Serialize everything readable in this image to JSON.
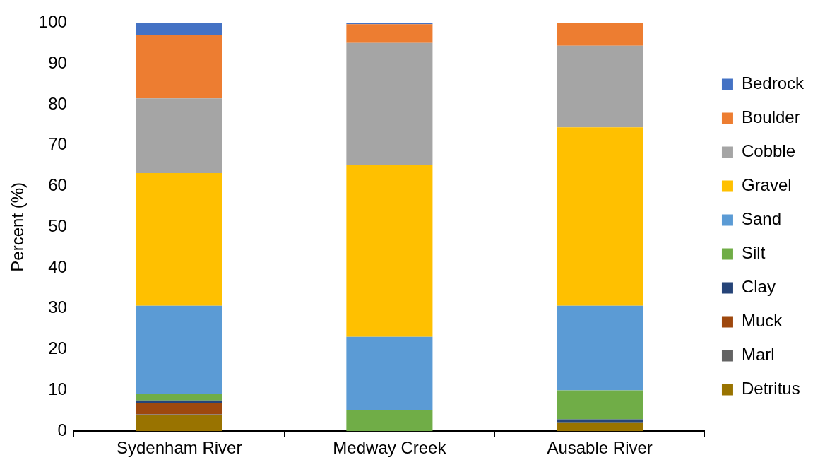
{
  "chart_data": {
    "type": "bar",
    "ylabel": "Percent (%)",
    "categories": [
      "Sydenham River",
      "Medway Creek",
      "Ausable River"
    ],
    "stacked": true,
    "ylim": [
      0,
      100
    ],
    "yticks": [
      0,
      10,
      20,
      30,
      40,
      50,
      60,
      70,
      80,
      90,
      100
    ],
    "grid": false,
    "legend": "right",
    "series": [
      {
        "name": "Detritus",
        "color": "#997300",
        "values": [
          3.9,
          0,
          2.0
        ]
      },
      {
        "name": "Marl",
        "color": "#636363",
        "values": [
          0.2,
          0,
          0
        ]
      },
      {
        "name": "Muck",
        "color": "#9e480e",
        "values": [
          2.8,
          0,
          0
        ]
      },
      {
        "name": "Clay",
        "color": "#264478",
        "values": [
          0.6,
          0,
          0.9
        ]
      },
      {
        "name": "Silt",
        "color": "#70ad47",
        "values": [
          1.6,
          5.2,
          7.1
        ]
      },
      {
        "name": "Sand",
        "color": "#5b9bd5",
        "values": [
          21.6,
          17.9,
          20.7
        ]
      },
      {
        "name": "Gravel",
        "color": "#ffc000",
        "values": [
          32.5,
          42.2,
          43.7
        ]
      },
      {
        "name": "Cobble",
        "color": "#a5a5a5",
        "values": [
          18.3,
          29.8,
          20.0
        ]
      },
      {
        "name": "Boulder",
        "color": "#ed7d31",
        "values": [
          15.5,
          4.6,
          5.6
        ]
      },
      {
        "name": "Bedrock",
        "color": "#4472c4",
        "values": [
          3.0,
          0.3,
          0
        ]
      }
    ]
  }
}
